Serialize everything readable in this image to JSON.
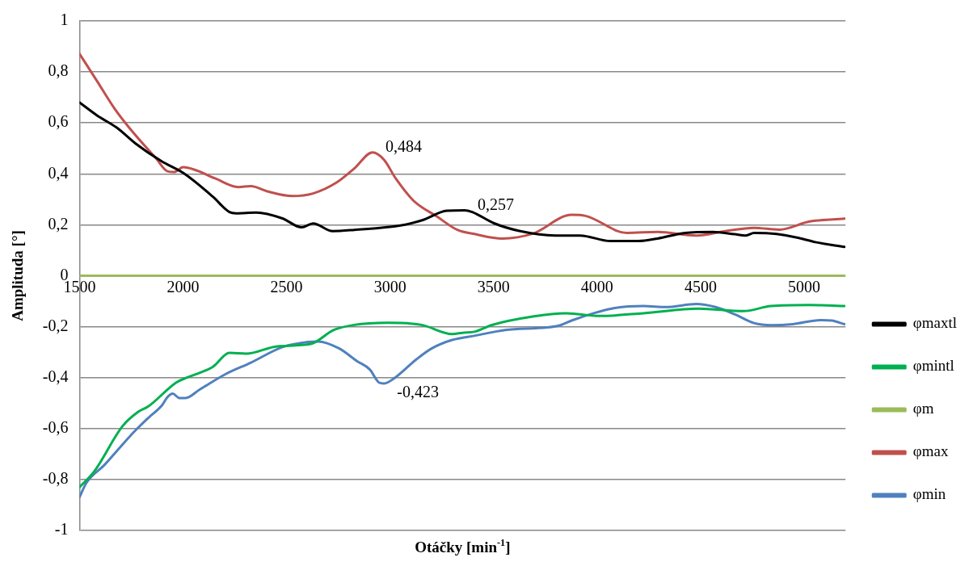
{
  "chart_data": {
    "type": "line",
    "xlabel": "Otáčky [min$^{-1}$]",
    "ylabel": "Amplituda [°]",
    "xlim": [
      1500,
      5200
    ],
    "xticks": [
      1500,
      2000,
      2500,
      3000,
      3500,
      4000,
      4500,
      5000
    ],
    "ylim": [
      -1,
      1
    ],
    "yticks": [
      {
        "value": -1,
        "label": "-1"
      },
      {
        "value": -0.8,
        "label": "-0,8"
      },
      {
        "value": -0.6,
        "label": "-0,6"
      },
      {
        "value": -0.4,
        "label": "-0,4"
      },
      {
        "value": -0.2,
        "label": "-0,2"
      },
      {
        "value": 0,
        "label": "0"
      },
      {
        "value": 0.2,
        "label": "0,2"
      },
      {
        "value": 0.4,
        "label": "0,4"
      },
      {
        "value": 0.6,
        "label": "0,6"
      },
      {
        "value": 0.8,
        "label": "0,8"
      },
      {
        "value": 1,
        "label": "1"
      }
    ],
    "grid": "y",
    "legend": "right",
    "marker": "none",
    "line_style": "solid",
    "annotations": [
      {
        "text": "0,484",
        "x": 2915,
        "y": 0.484
      },
      {
        "text": "0,257",
        "x": 3360,
        "y": 0.257
      },
      {
        "text": "-0,423",
        "x": 2971,
        "y": -0.423
      }
    ],
    "series": [
      {
        "name": "φmaxtl",
        "color": "#000000",
        "x": [
          1500,
          1583,
          1682,
          1769,
          1895,
          2007,
          2144,
          2224,
          2256,
          2353,
          2480,
          2573,
          2628,
          2722,
          2827,
          3050,
          3155,
          3274,
          3360,
          3397,
          3502,
          3624,
          3798,
          3917,
          4065,
          4199,
          4292,
          4426,
          4559,
          4664,
          4718,
          4758,
          4866,
          4975,
          5054,
          5195
        ],
        "values": [
          0.68,
          0.63,
          0.58,
          0.52,
          0.45,
          0.4,
          0.31,
          0.25,
          0.245,
          0.248,
          0.225,
          0.19,
          0.205,
          0.175,
          0.18,
          0.197,
          0.218,
          0.255,
          0.257,
          0.25,
          0.206,
          0.176,
          0.158,
          0.158,
          0.136,
          0.136,
          0.146,
          0.168,
          0.172,
          0.163,
          0.158,
          0.168,
          0.164,
          0.148,
          0.132,
          0.113
        ]
      },
      {
        "name": "φmintl",
        "color": "#00b050",
        "x": [
          1500,
          1570,
          1708,
          1782,
          1832,
          1967,
          2018,
          2143,
          2224,
          2305,
          2455,
          2616,
          2728,
          2827,
          2989,
          3152,
          3300,
          3350,
          3412,
          3489,
          3689,
          3850,
          4010,
          4224,
          4490,
          4707,
          4840,
          5027,
          5195
        ],
        "values": [
          -0.83,
          -0.769,
          -0.59,
          -0.535,
          -0.513,
          -0.419,
          -0.4,
          -0.358,
          -0.303,
          -0.306,
          -0.277,
          -0.268,
          -0.213,
          -0.193,
          -0.185,
          -0.193,
          -0.229,
          -0.224,
          -0.219,
          -0.194,
          -0.16,
          -0.147,
          -0.158,
          -0.147,
          -0.129,
          -0.139,
          -0.119,
          -0.115,
          -0.119
        ]
      },
      {
        "name": "φm",
        "color": "#9bbb59",
        "x": [
          1500,
          5195
        ],
        "values": [
          0,
          0
        ]
      },
      {
        "name": "φmax",
        "color": "#c0504d",
        "x": [
          1500,
          1583,
          1670,
          1744,
          1870,
          1924,
          1957,
          2000,
          2056,
          2155,
          2267,
          2328,
          2404,
          2529,
          2628,
          2740,
          2827,
          2915,
          2971,
          3027,
          3114,
          3227,
          3325,
          3412,
          3541,
          3689,
          3877,
          3944,
          4144,
          4292,
          4480,
          4624,
          4758,
          4880,
          5027,
          5195
        ],
        "values": [
          0.871,
          0.766,
          0.655,
          0.577,
          0.46,
          0.41,
          0.407,
          0.426,
          0.416,
          0.382,
          0.348,
          0.352,
          0.332,
          0.313,
          0.323,
          0.365,
          0.421,
          0.484,
          0.455,
          0.382,
          0.294,
          0.232,
          0.18,
          0.163,
          0.146,
          0.165,
          0.239,
          0.235,
          0.168,
          0.172,
          0.158,
          0.176,
          0.188,
          0.181,
          0.213,
          0.224
        ]
      },
      {
        "name": "φmin",
        "color": "#4f81bd",
        "x": [
          1500,
          1533,
          1621,
          1695,
          1769,
          1832,
          1899,
          1924,
          1950,
          1982,
          2012,
          2080,
          2206,
          2328,
          2480,
          2603,
          2653,
          2753,
          2840,
          2902,
          2946,
          2971,
          3014,
          3126,
          3202,
          3300,
          3412,
          3556,
          3758,
          3823,
          3877,
          3984,
          4090,
          4224,
          4332,
          4479,
          4572,
          4666,
          4758,
          4840,
          4946,
          5079,
          5133,
          5195
        ],
        "values": [
          -0.869,
          -0.813,
          -0.742,
          -0.674,
          -0.608,
          -0.558,
          -0.508,
          -0.477,
          -0.463,
          -0.48,
          -0.48,
          -0.447,
          -0.386,
          -0.341,
          -0.28,
          -0.26,
          -0.258,
          -0.285,
          -0.335,
          -0.368,
          -0.419,
          -0.423,
          -0.406,
          -0.329,
          -0.285,
          -0.252,
          -0.235,
          -0.213,
          -0.203,
          -0.194,
          -0.176,
          -0.147,
          -0.126,
          -0.119,
          -0.123,
          -0.111,
          -0.123,
          -0.152,
          -0.186,
          -0.194,
          -0.19,
          -0.174,
          -0.176,
          -0.19
        ]
      }
    ]
  }
}
